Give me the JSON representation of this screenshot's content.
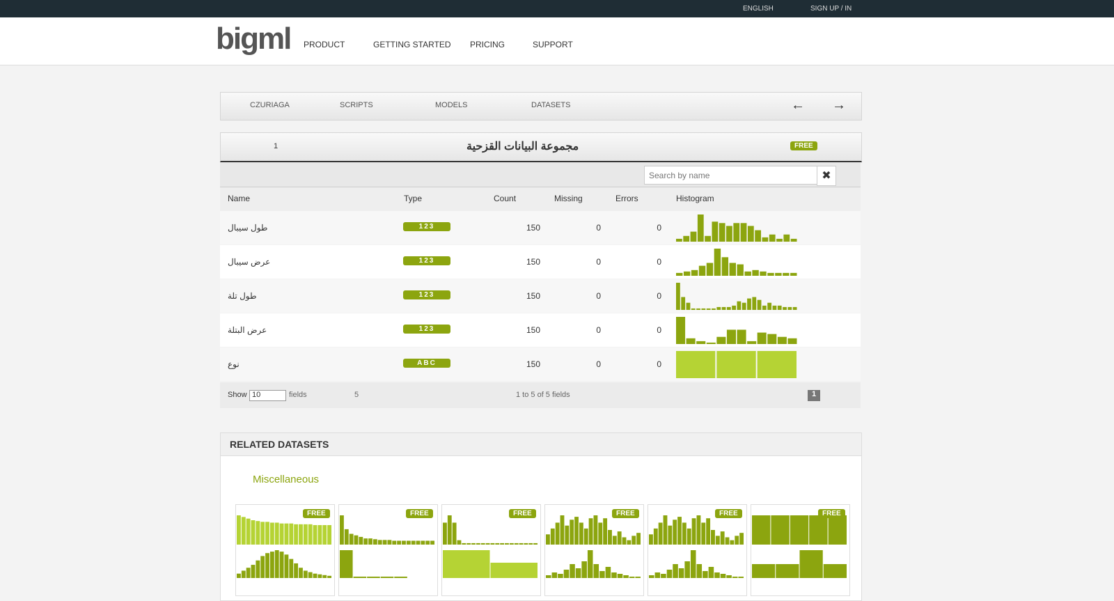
{
  "topbar": {
    "language": "ENGLISH",
    "signup": "SIGN UP / IN"
  },
  "nav": {
    "logo": "bigml",
    "items": [
      "PRODUCT",
      "GETTING STARTED",
      "PRICING",
      "SUPPORT"
    ]
  },
  "toolbar": {
    "user": "CZURIAGA",
    "tabs": [
      "SCRIPTS",
      "MODELS",
      "DATASETS"
    ]
  },
  "dataset": {
    "title": "مجموعة البيانات القزحية",
    "badge": "FREE",
    "forks": 1,
    "search_placeholder": "Search by name",
    "columns": [
      "Name",
      "Type",
      "Count",
      "Missing",
      "Errors",
      "Histogram"
    ],
    "rows": [
      {
        "name": "طول سيبال",
        "type": "123",
        "count": 150,
        "missing": 0,
        "errors": 0,
        "histogram": [
          4,
          8,
          14,
          38,
          8,
          28,
          26,
          22,
          26,
          26,
          22,
          16,
          6,
          10,
          4,
          10,
          4
        ]
      },
      {
        "name": "عرض سيبال",
        "type": "123",
        "count": 150,
        "missing": 0,
        "errors": 0,
        "histogram": [
          4,
          6,
          8,
          14,
          18,
          38,
          26,
          18,
          16,
          6,
          8,
          6,
          4,
          4,
          4,
          4
        ]
      },
      {
        "name": "طول تلة",
        "type": "123",
        "count": 150,
        "missing": 0,
        "errors": 0,
        "histogram": [
          38,
          18,
          10,
          2,
          2,
          2,
          2,
          2,
          4,
          4,
          4,
          6,
          12,
          10,
          16,
          18,
          14,
          6,
          10,
          6,
          6,
          4,
          4,
          4
        ]
      },
      {
        "name": "عرض البتلة",
        "type": "123",
        "count": 150,
        "missing": 0,
        "errors": 0,
        "histogram": [
          38,
          8,
          4,
          2,
          10,
          20,
          20,
          4,
          16,
          14,
          10,
          8
        ]
      },
      {
        "name": "نوع",
        "type": "ABC",
        "count": 150,
        "missing": 0,
        "errors": 0,
        "histogram": [
          40,
          40,
          40
        ]
      }
    ]
  },
  "footer": {
    "show": "Show",
    "page_size": 10,
    "fields": "fields",
    "valid": 5,
    "summary": "1 to 5 of 5 fields",
    "page": 1
  },
  "related": {
    "title": "RELATED DATASETS",
    "category": "Miscellaneous",
    "cards": [
      {
        "badge": "FREE",
        "top_color": "#b5d334",
        "bottom_color": "#8ca50f",
        "top": [
          36,
          34,
          32,
          30,
          29,
          28,
          28,
          27,
          27,
          26,
          26,
          26,
          25,
          25,
          25,
          25,
          24,
          24,
          24,
          24
        ],
        "bottom": [
          6,
          10,
          14,
          18,
          24,
          30,
          34,
          36,
          38,
          36,
          32,
          26,
          20,
          14,
          10,
          8,
          6,
          5,
          4,
          3
        ]
      },
      {
        "badge": "FREE",
        "top_color": "#8ca50f",
        "bottom_color": "#8ca50f",
        "top": [
          38,
          20,
          14,
          12,
          10,
          8,
          8,
          7,
          6,
          6,
          6,
          5,
          5,
          5,
          5,
          5,
          5,
          5,
          5,
          5
        ],
        "bottom": [
          40,
          2,
          2,
          2,
          2,
          0,
          0
        ]
      },
      {
        "badge": "FREE",
        "top_color": "#8ca50f",
        "bottom_color": "#b5d334",
        "top": [
          30,
          40,
          30,
          6,
          2,
          2,
          2,
          2,
          2,
          2,
          2,
          2,
          2,
          2,
          2,
          2,
          2,
          2,
          2,
          2
        ],
        "bottom": [
          40,
          22
        ]
      },
      {
        "badge": "FREE",
        "top_color": "#8ca50f",
        "bottom_color": "#8ca50f",
        "top": [
          14,
          22,
          30,
          40,
          26,
          34,
          38,
          30,
          22,
          36,
          40,
          30,
          36,
          20,
          12,
          18,
          10,
          6,
          12,
          16
        ],
        "bottom": [
          4,
          8,
          6,
          12,
          20,
          14,
          24,
          40,
          20,
          10,
          16,
          8,
          6,
          4,
          2,
          2
        ]
      },
      {
        "badge": "FREE",
        "top_color": "#8ca50f",
        "bottom_color": "#8ca50f",
        "top": [
          14,
          22,
          30,
          40,
          26,
          34,
          38,
          30,
          22,
          36,
          40,
          30,
          36,
          20,
          12,
          18,
          10,
          6,
          12,
          16
        ],
        "bottom": [
          4,
          8,
          6,
          12,
          20,
          14,
          24,
          40,
          20,
          10,
          16,
          8,
          6,
          4,
          2,
          2
        ]
      },
      {
        "badge": "FREE",
        "top_color": "#8ca50f",
        "bottom_color": "#8ca50f",
        "top": [
          40,
          40,
          40,
          40,
          40
        ],
        "bottom": [
          20,
          20,
          40,
          20
        ]
      }
    ]
  }
}
